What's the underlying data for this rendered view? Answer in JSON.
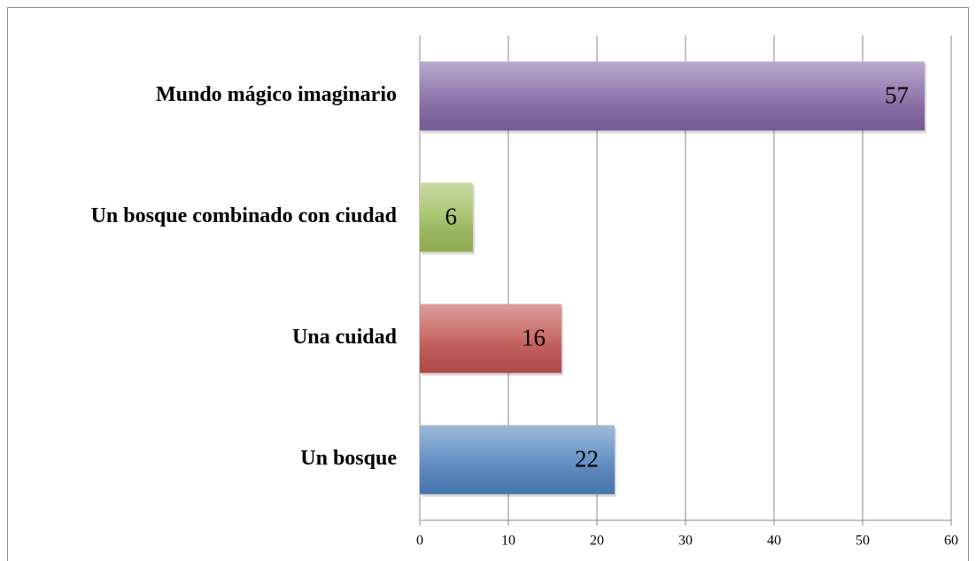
{
  "chart_data": {
    "type": "barh",
    "categories": [
      "Mundo mágico imaginario",
      "Un bosque combinado con ciudad",
      "Una cuidad",
      "Un bosque"
    ],
    "values": [
      57,
      6,
      16,
      22
    ],
    "colors": [
      "#8064a2",
      "#9bbb59",
      "#c0504d",
      "#4f81bd"
    ],
    "xlim": [
      0,
      60
    ],
    "xticks": [
      0,
      10,
      20,
      30,
      40,
      50,
      60
    ],
    "grid": true
  }
}
